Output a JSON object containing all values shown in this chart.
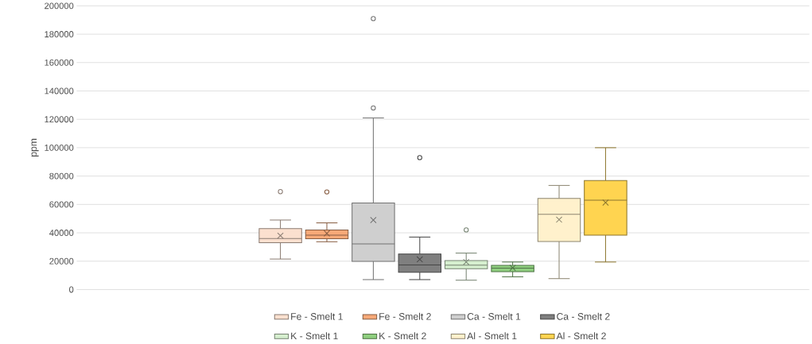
{
  "chart_data": {
    "type": "box",
    "ylabel": "ppm",
    "categories": [
      null
    ],
    "ylim": [
      0,
      200000
    ],
    "yticks": [
      0,
      20000,
      40000,
      60000,
      80000,
      100000,
      120000,
      140000,
      160000,
      180000,
      200000
    ],
    "grid": "y",
    "legend": "bottom",
    "tick_labels": "y",
    "marker": "cross",
    "series": [
      {
        "name": "Fe - Smelt 1",
        "color": "#fbe0cf",
        "boxes": [
          {
            "low": 21500,
            "q1": 33000,
            "median": 36000,
            "q3": 43000,
            "high": 49000,
            "mean": 38000,
            "outliers": [
              69000
            ]
          }
        ]
      },
      {
        "name": "Fe - Smelt 2",
        "color": "#f7a978",
        "boxes": [
          {
            "low": 33700,
            "q1": 35800,
            "median": 38300,
            "q3": 42000,
            "high": 47000,
            "mean": 39600,
            "outliers": [
              68800
            ]
          }
        ]
      },
      {
        "name": "Ca - Smelt 1",
        "color": "#cfcfcf",
        "boxes": [
          {
            "low": 7000,
            "q1": 19800,
            "median": 32200,
            "q3": 61000,
            "high": 121000,
            "mean": 49000,
            "outliers": [
              128000,
              191000
            ]
          }
        ]
      },
      {
        "name": "Ca - Smelt 2",
        "color": "#7f7f7f",
        "boxes": [
          {
            "low": 7000,
            "q1": 12200,
            "median": 17300,
            "q3": 25000,
            "high": 37000,
            "mean": 21300,
            "outliers": [
              93000
            ]
          }
        ]
      },
      {
        "name": "K - Smelt 1",
        "color": "#d6efcf",
        "boxes": [
          {
            "low": 6600,
            "q1": 14700,
            "median": 17200,
            "q3": 20400,
            "high": 25700,
            "mean": 19400,
            "outliers": [
              42000
            ]
          }
        ]
      },
      {
        "name": "K - Smelt 2",
        "color": "#8fcf7f",
        "boxes": [
          {
            "low": 9000,
            "q1": 12600,
            "median": 15100,
            "q3": 17000,
            "high": 19400,
            "mean": 15300
          }
        ]
      },
      {
        "name": "Al - Smelt 1",
        "color": "#fff1cc",
        "boxes": [
          {
            "low": 7700,
            "q1": 33800,
            "median": 53000,
            "q3": 64200,
            "high": 73400,
            "mean": 49300
          }
        ]
      },
      {
        "name": "Al - Smelt 2",
        "color": "#ffd450",
        "boxes": [
          {
            "low": 19400,
            "q1": 38300,
            "median": 63000,
            "q3": 76800,
            "high": 100000,
            "mean": 61300
          }
        ]
      }
    ]
  }
}
